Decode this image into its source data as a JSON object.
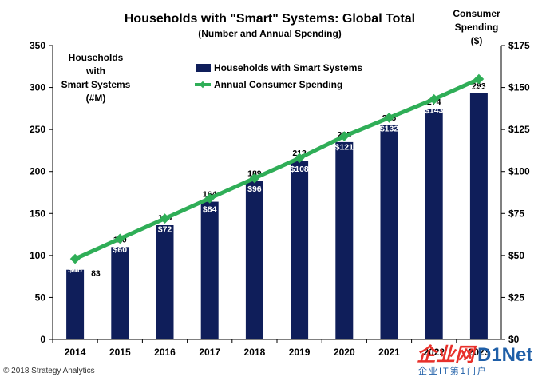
{
  "chart_data": {
    "type": "bar",
    "title": "Households with \"Smart\" Systems: Global Total",
    "subtitle": "(Number and Annual Spending)",
    "categories": [
      "2014",
      "2015",
      "2016",
      "2017",
      "2018",
      "2019",
      "2020",
      "2021",
      "2022",
      "2023"
    ],
    "series": [
      {
        "name": "Households with Smart Systems",
        "type": "bar",
        "axis": "left",
        "color": "#0f1e5a",
        "values": [
          83,
          110,
          136,
          164,
          189,
          213,
          235,
          255,
          274,
          293
        ]
      },
      {
        "name": "Annual Consumer Spending",
        "type": "line",
        "axis": "right",
        "color": "#2fae57",
        "values": [
          48,
          60,
          72,
          84,
          96,
          108,
          121,
          132,
          143,
          155
        ],
        "labels": [
          "$48",
          "$60",
          "$72",
          "$84",
          "$96",
          "$108",
          "$121",
          "$132",
          "$143",
          "$155"
        ]
      }
    ],
    "ylabel_left": [
      "Households",
      "with",
      "Smart Systems",
      "(#M)"
    ],
    "ylabel_right": [
      "Consumer",
      "Spending",
      "($)"
    ],
    "ylim_left": [
      0,
      350
    ],
    "yticks_left": [
      "0",
      "50",
      "100",
      "150",
      "200",
      "250",
      "300",
      "350"
    ],
    "ylim_right": [
      0,
      175
    ],
    "yticks_right": [
      "$0",
      "$25",
      "$50",
      "$75",
      "$100",
      "$125",
      "$150",
      "$175"
    ],
    "grid": false,
    "legend_position": "top-center"
  },
  "footer": {
    "copyright": "© 2018 Strategy Analytics"
  },
  "watermark": {
    "brand_cn": "企业网",
    "brand_en": "D1Net",
    "tagline": "企业IT第1门户"
  }
}
